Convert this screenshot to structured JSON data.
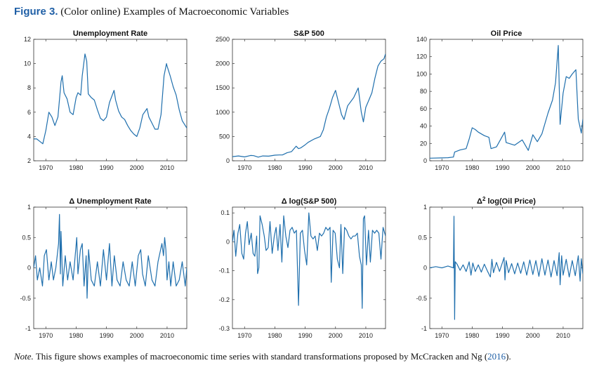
{
  "figure": {
    "label": "Figure 3.",
    "caption": "(Color online) Examples of Macroeconomic Variables"
  },
  "note": {
    "label": "Note.",
    "text_before": "This figure shows examples of macroeconomic time series with standard transformations proposed by McCracken and Ng (",
    "year": "2016",
    "text_after": ")."
  },
  "colors": {
    "line": "#1f6fad",
    "axis": "#333333",
    "title_accent": "#1f5fa6"
  },
  "chart_data": [
    {
      "type": "line",
      "title": "Unemployment Rate",
      "title_prefix": "",
      "title_sup": "",
      "title_suffix": "",
      "xlim": [
        1966,
        2016.5
      ],
      "ylim": [
        2,
        12
      ],
      "xticks": [
        1970,
        1980,
        1990,
        2000,
        2010
      ],
      "yticks": [
        2,
        4,
        6,
        8,
        10,
        12
      ],
      "ytick_labels": [
        "2",
        "4",
        "6",
        "8",
        "10",
        "12"
      ],
      "series": [
        {
          "x": [
            1966.0,
            1967.0,
            1968.0,
            1969.0,
            1970.0,
            1971.0,
            1972.0,
            1973.0,
            1974.0,
            1975.0,
            1975.4,
            1976.0,
            1977.0,
            1978.0,
            1979.0,
            1980.0,
            1980.6,
            1981.5,
            1982.0,
            1982.9,
            1983.5,
            1984.0,
            1985.0,
            1986.0,
            1987.0,
            1988.0,
            1989.0,
            1990.0,
            1991.0,
            1992.5,
            1993.0,
            1994.0,
            1995.0,
            1996.0,
            1997.0,
            1998.0,
            1999.0,
            2000.0,
            2001.0,
            2002.0,
            2003.4,
            2004.0,
            2005.0,
            2006.0,
            2007.0,
            2008.0,
            2009.0,
            2009.8,
            2010.0,
            2011.0,
            2012.0,
            2013.0,
            2014.0,
            2015.0,
            2016.0,
            2016.5
          ],
          "y": [
            3.8,
            3.8,
            3.6,
            3.4,
            4.5,
            6.0,
            5.6,
            4.9,
            5.6,
            8.5,
            9.0,
            7.6,
            7.1,
            6.0,
            5.8,
            7.2,
            7.6,
            7.4,
            9.0,
            10.8,
            10.2,
            7.5,
            7.2,
            7.0,
            6.2,
            5.5,
            5.3,
            5.6,
            6.8,
            7.8,
            7.0,
            6.1,
            5.6,
            5.4,
            4.9,
            4.5,
            4.2,
            4.0,
            4.7,
            5.8,
            6.3,
            5.6,
            5.1,
            4.6,
            4.6,
            5.8,
            9.0,
            10.0,
            9.8,
            9.0,
            8.1,
            7.4,
            6.2,
            5.3,
            4.9,
            4.7
          ]
        }
      ]
    },
    {
      "type": "line",
      "title": "S&P 500",
      "title_prefix": "",
      "title_sup": "",
      "title_suffix": "",
      "xlim": [
        1966,
        2016.5
      ],
      "ylim": [
        0,
        2500
      ],
      "xticks": [
        1970,
        1980,
        1990,
        2000,
        2010
      ],
      "yticks": [
        0,
        500,
        1000,
        1500,
        2000,
        2500
      ],
      "ytick_labels": [
        "0",
        "500",
        "1000",
        "1500",
        "2000",
        "2500"
      ],
      "series": [
        {
          "x": [
            1966.0,
            1968.0,
            1970.0,
            1972.0,
            1973.0,
            1974.5,
            1976.0,
            1978.0,
            1980.0,
            1981.5,
            1982.5,
            1984.0,
            1985.5,
            1987.0,
            1987.8,
            1988.5,
            1990.0,
            1991.0,
            1993.0,
            1995.0,
            1996.0,
            1997.0,
            1998.0,
            1999.0,
            2000.0,
            2001.0,
            2002.0,
            2002.8,
            2004.0,
            2006.0,
            2007.5,
            2008.5,
            2009.2,
            2010.0,
            2011.0,
            2012.0,
            2013.0,
            2014.0,
            2015.0,
            2016.0,
            2016.5
          ],
          "y": [
            85,
            100,
            80,
            110,
            105,
            75,
            100,
            95,
            115,
            120,
            120,
            165,
            190,
            300,
            250,
            265,
            330,
            380,
            450,
            500,
            640,
            900,
            1080,
            1300,
            1450,
            1200,
            950,
            850,
            1130,
            1300,
            1500,
            1000,
            800,
            1100,
            1250,
            1400,
            1700,
            1950,
            2050,
            2100,
            2200
          ]
        }
      ]
    },
    {
      "type": "line",
      "title": "Oil Price",
      "title_prefix": "",
      "title_sup": "",
      "title_suffix": "",
      "xlim": [
        1966,
        2016.5
      ],
      "ylim": [
        0,
        140
      ],
      "xticks": [
        1970,
        1980,
        1990,
        2000,
        2010
      ],
      "yticks": [
        0,
        20,
        40,
        60,
        80,
        100,
        120,
        140
      ],
      "ytick_labels": [
        "0",
        "20",
        "40",
        "60",
        "80",
        "100",
        "120",
        "140"
      ],
      "series": [
        {
          "x": [
            1966.0,
            1970.0,
            1972.0,
            1973.8,
            1974.2,
            1976.0,
            1978.0,
            1979.0,
            1980.0,
            1981.0,
            1982.0,
            1984.0,
            1985.5,
            1986.2,
            1988.0,
            1990.7,
            1991.2,
            1994.0,
            1996.5,
            1998.5,
            2000.0,
            2001.5,
            2003.0,
            2005.0,
            2006.5,
            2007.5,
            2008.4,
            2009.0,
            2010.0,
            2011.0,
            2012.0,
            2013.0,
            2014.2,
            2015.0,
            2016.0,
            2016.5
          ],
          "y": [
            3,
            3.3,
            3.6,
            4.3,
            10,
            12.5,
            14,
            25,
            38,
            36,
            33,
            29,
            27,
            14,
            16,
            33,
            21,
            18,
            24,
            12,
            30,
            22,
            31,
            55,
            70,
            90,
            133,
            42,
            78,
            97,
            95,
            100,
            105,
            48,
            32,
            48
          ]
        }
      ]
    },
    {
      "type": "line",
      "title": "Unemployment Rate",
      "title_prefix": "Δ ",
      "title_sup": "",
      "title_suffix": "",
      "xlim": [
        1966,
        2016.5
      ],
      "ylim": [
        -1,
        1
      ],
      "xticks": [
        1970,
        1980,
        1990,
        2000,
        2010
      ],
      "yticks": [
        -1,
        -0.5,
        0,
        0.5,
        1
      ],
      "ytick_labels": [
        "-1",
        "-0.5",
        "0",
        "0.5",
        "1"
      ],
      "series": [
        {
          "x": [
            1966.0,
            1966.6,
            1967.2,
            1968.0,
            1968.9,
            1969.5,
            1970.2,
            1971.0,
            1971.8,
            1972.5,
            1973.3,
            1974.2,
            1974.5,
            1974.8,
            1975.0,
            1975.6,
            1976.4,
            1977.2,
            1978.0,
            1979.0,
            1980.2,
            1980.6,
            1981.4,
            1982.0,
            1982.6,
            1983.3,
            1983.6,
            1984.1,
            1985.0,
            1986.0,
            1987.0,
            1988.0,
            1989.0,
            1990.0,
            1991.0,
            1991.8,
            1992.6,
            1993.5,
            1994.5,
            1995.5,
            1996.5,
            1997.5,
            1998.5,
            1999.5,
            2000.5,
            2001.3,
            2001.9,
            2002.8,
            2003.8,
            2005.0,
            2006.0,
            2007.0,
            2008.3,
            2008.8,
            2009.2,
            2009.6,
            2010.0,
            2010.6,
            2011.2,
            2012.0,
            2013.0,
            2014.0,
            2015.0,
            2016.0,
            2016.5
          ],
          "y": [
            0.0,
            0.2,
            -0.2,
            0.0,
            -0.3,
            0.2,
            0.3,
            -0.2,
            0.1,
            -0.2,
            0.0,
            0.4,
            0.88,
            -0.1,
            0.6,
            -0.3,
            0.2,
            -0.2,
            0.1,
            -0.2,
            0.5,
            -0.1,
            0.3,
            0.4,
            -0.3,
            0.2,
            -0.5,
            0.3,
            -0.2,
            -0.3,
            0.1,
            -0.3,
            0.3,
            -0.2,
            0.4,
            -0.3,
            0.2,
            -0.2,
            -0.3,
            0.1,
            -0.2,
            -0.3,
            0.1,
            -0.3,
            0.2,
            0.3,
            -0.1,
            -0.3,
            0.2,
            -0.2,
            -0.3,
            0.1,
            0.4,
            0.2,
            0.5,
            0.3,
            -0.2,
            0.1,
            -0.3,
            0.1,
            -0.3,
            -0.2,
            0.1,
            -0.3,
            0.0
          ]
        }
      ]
    },
    {
      "type": "line",
      "title": "log(S&P 500)",
      "title_prefix": "Δ ",
      "title_sup": "",
      "title_suffix": "",
      "xlim": [
        1966,
        2016.5
      ],
      "ylim": [
        -0.3,
        0.12
      ],
      "xticks": [
        1970,
        1980,
        1990,
        2000,
        2010
      ],
      "yticks": [
        -0.3,
        -0.2,
        -0.1,
        0,
        0.1
      ],
      "ytick_labels": [
        "-0.3",
        "-0.2",
        "-0.1",
        "0",
        "0.1"
      ],
      "series": [
        {
          "x": [
            1966.0,
            1966.5,
            1967.1,
            1967.8,
            1968.4,
            1969.1,
            1969.7,
            1970.3,
            1970.9,
            1971.5,
            1972.2,
            1972.8,
            1973.4,
            1974.0,
            1974.3,
            1974.7,
            1975.1,
            1975.8,
            1976.5,
            1977.1,
            1977.8,
            1978.4,
            1979.1,
            1979.8,
            1980.4,
            1981.0,
            1981.7,
            1982.3,
            1982.9,
            1983.6,
            1984.3,
            1985.0,
            1985.7,
            1986.4,
            1987.1,
            1987.8,
            1988.4,
            1989.1,
            1989.8,
            1990.5,
            1991.2,
            1991.9,
            1992.6,
            1993.3,
            1994.0,
            1994.7,
            1995.4,
            1996.1,
            1996.8,
            1997.5,
            1998.2,
            1998.6,
            1999.2,
            1999.9,
            2000.6,
            2001.3,
            2001.8,
            2002.4,
            2003.0,
            2003.7,
            2004.4,
            2005.1,
            2005.8,
            2006.5,
            2007.2,
            2007.9,
            2008.5,
            2008.8,
            2009.2,
            2009.6,
            2010.2,
            2010.9,
            2011.5,
            2012.2,
            2012.9,
            2013.6,
            2014.3,
            2015.0,
            2015.7,
            2016.5
          ],
          "y": [
            0.0,
            0.04,
            -0.05,
            0.03,
            0.06,
            -0.04,
            -0.06,
            0.03,
            0.07,
            -0.01,
            0.03,
            -0.04,
            -0.05,
            0.02,
            -0.11,
            -0.09,
            0.09,
            0.06,
            0.02,
            -0.03,
            -0.02,
            0.07,
            -0.04,
            0.02,
            0.05,
            -0.03,
            0.06,
            -0.07,
            0.09,
            0.02,
            -0.02,
            0.04,
            0.05,
            0.03,
            0.04,
            -0.22,
            0.03,
            0.04,
            -0.03,
            -0.08,
            0.1,
            0.02,
            0.01,
            0.02,
            -0.03,
            0.03,
            0.02,
            0.03,
            0.05,
            0.04,
            0.05,
            -0.14,
            0.04,
            0.03,
            -0.06,
            -0.09,
            0.06,
            -0.11,
            0.05,
            0.04,
            0.02,
            0.01,
            0.02,
            0.02,
            0.03,
            -0.05,
            -0.08,
            -0.23,
            0.08,
            0.09,
            -0.08,
            0.04,
            -0.07,
            0.04,
            0.03,
            0.04,
            0.03,
            -0.06,
            0.05,
            0.02
          ]
        }
      ]
    },
    {
      "type": "line",
      "title": "log(Oil Price)",
      "title_prefix": "Δ",
      "title_sup": "2",
      "title_suffix": " ",
      "xlim": [
        1966,
        2016.5
      ],
      "ylim": [
        -1,
        1
      ],
      "xticks": [
        1970,
        1980,
        1990,
        2000,
        2010
      ],
      "yticks": [
        -1,
        -0.5,
        0,
        0.5,
        1
      ],
      "ytick_labels": [
        "-1",
        "-0.5",
        "0",
        "0.5",
        "1"
      ],
      "series": [
        {
          "x": [
            1966.0,
            1968.0,
            1970.0,
            1972.0,
            1973.8,
            1974.0,
            1974.2,
            1974.4,
            1975.0,
            1976.0,
            1977.0,
            1978.0,
            1979.0,
            1979.6,
            1980.2,
            1981.0,
            1982.0,
            1983.0,
            1984.0,
            1985.0,
            1986.0,
            1986.5,
            1987.0,
            1988.0,
            1989.0,
            1990.5,
            1990.8,
            1991.2,
            1992.0,
            1993.0,
            1994.0,
            1995.0,
            1996.0,
            1997.0,
            1998.0,
            1999.0,
            2000.0,
            2001.0,
            2002.0,
            2003.0,
            2004.0,
            2005.0,
            2006.0,
            2007.0,
            2008.0,
            2008.7,
            2009.0,
            2009.5,
            2010.0,
            2011.0,
            2012.0,
            2013.0,
            2014.0,
            2015.0,
            2015.6,
            2016.0,
            2016.5
          ],
          "y": [
            0.0,
            0.02,
            0.0,
            0.03,
            0.0,
            0.85,
            -0.85,
            0.1,
            0.06,
            -0.04,
            0.05,
            -0.06,
            0.1,
            -0.12,
            0.08,
            -0.06,
            0.05,
            -0.07,
            0.06,
            -0.05,
            -0.15,
            0.14,
            -0.08,
            0.09,
            -0.06,
            0.17,
            -0.2,
            0.12,
            -0.08,
            0.07,
            -0.1,
            0.08,
            -0.09,
            0.1,
            -0.12,
            0.13,
            -0.11,
            0.12,
            -0.14,
            0.15,
            -0.12,
            0.13,
            -0.15,
            0.12,
            -0.13,
            0.25,
            -0.28,
            0.2,
            -0.12,
            0.14,
            -0.15,
            0.12,
            -0.13,
            0.2,
            -0.22,
            0.15,
            -0.1
          ]
        }
      ]
    }
  ]
}
